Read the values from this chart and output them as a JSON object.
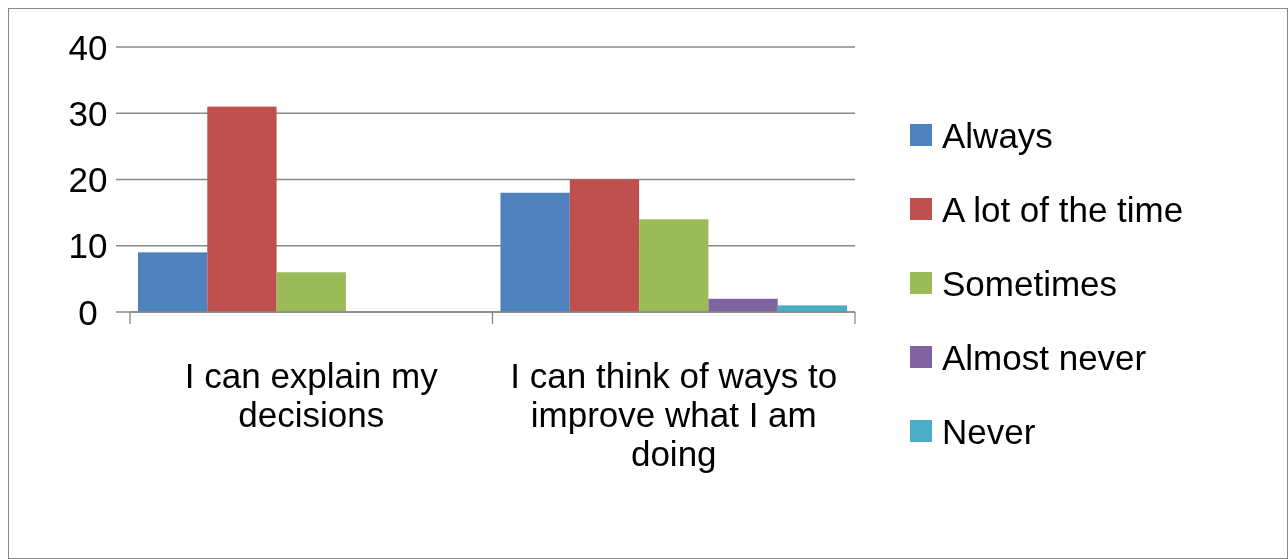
{
  "chart_data": {
    "type": "bar",
    "categories": [
      "I can explain my decisions",
      "I can think of ways to improve what I am doing"
    ],
    "series": [
      {
        "name": "Always",
        "color": "#4f81bd",
        "values": [
          9,
          18
        ]
      },
      {
        "name": "A lot of the time",
        "color": "#c0504d",
        "values": [
          31,
          20
        ]
      },
      {
        "name": "Sometimes",
        "color": "#9bbb59",
        "values": [
          6,
          14
        ]
      },
      {
        "name": "Almost never",
        "color": "#8064a2",
        "values": [
          0,
          2
        ]
      },
      {
        "name": "Never",
        "color": "#4bacc6",
        "values": [
          0,
          1
        ]
      }
    ],
    "ylim": [
      0,
      40
    ],
    "yticks": [
      0,
      10,
      20,
      30,
      40
    ],
    "grid": "y",
    "legend": "right"
  }
}
